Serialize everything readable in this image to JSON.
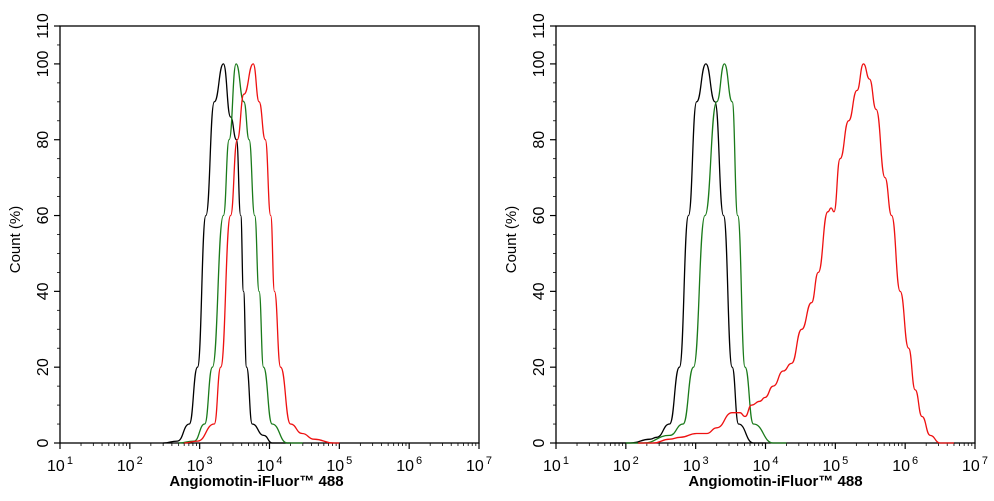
{
  "chart_data": [
    {
      "type": "line",
      "xscale": "log",
      "xlim": [
        10,
        10000000
      ],
      "ylim": [
        0,
        110
      ],
      "xlabel": "Angiomotin-iFluor™ 488",
      "ylabel": "Count  (%)",
      "x_tick_labels": [
        {
          "base": "10",
          "exp": "1"
        },
        {
          "base": "10",
          "exp": "2"
        },
        {
          "base": "10",
          "exp": "3"
        },
        {
          "base": "10",
          "exp": "4"
        },
        {
          "base": "10",
          "exp": "5"
        },
        {
          "base": "10",
          "exp": "6"
        },
        {
          "base": "10",
          "exp": "7"
        }
      ],
      "y_ticks": [
        0,
        20,
        40,
        60,
        80,
        100,
        110
      ],
      "grid": false,
      "series": [
        {
          "color": "#000000",
          "x": [
            300,
            480,
            710,
            930,
            1230,
            1620,
            2190,
            2770,
            3370,
            3870,
            4240,
            4700,
            5650,
            8300,
            10900,
            20000
          ],
          "y": [
            0,
            0.5,
            5,
            20,
            60,
            90,
            100,
            86,
            80,
            60,
            40,
            20,
            5,
            2,
            0,
            0
          ]
        },
        {
          "color": "#1a7a1a",
          "x": [
            500,
            830,
            1180,
            1520,
            2190,
            2640,
            3320,
            4300,
            5100,
            6140,
            7100,
            8200,
            10900,
            18000,
            30000
          ],
          "y": [
            0,
            0.5,
            5,
            20,
            60,
            80,
            100,
            90,
            80,
            60,
            40,
            20,
            5,
            0,
            0
          ]
        },
        {
          "color": "#ee1111",
          "x": [
            600,
            930,
            1620,
            2000,
            2770,
            3460,
            4300,
            5850,
            7100,
            8700,
            10400,
            11800,
            14400,
            20000,
            29400,
            43300,
            83500,
            100000
          ],
          "y": [
            0,
            0.5,
            5,
            20,
            60,
            80,
            92,
            100,
            90,
            80,
            60,
            40,
            20,
            5,
            2.5,
            1,
            0,
            0
          ]
        }
      ]
    },
    {
      "type": "line",
      "xscale": "log",
      "xlim": [
        10,
        10000000
      ],
      "ylim": [
        0,
        110
      ],
      "xlabel": "Angiomotin-iFluor™ 488",
      "ylabel": "Count  (%)",
      "x_tick_labels": [
        {
          "base": "10",
          "exp": "1"
        },
        {
          "base": "10",
          "exp": "2"
        },
        {
          "base": "10",
          "exp": "3"
        },
        {
          "base": "10",
          "exp": "4"
        },
        {
          "base": "10",
          "exp": "5"
        },
        {
          "base": "10",
          "exp": "6"
        },
        {
          "base": "10",
          "exp": "7"
        }
      ],
      "y_ticks": [
        0,
        20,
        40,
        60,
        80,
        100,
        110
      ],
      "grid": false,
      "series": [
        {
          "color": "#000000",
          "x": [
            60,
            115,
            224,
            276,
            424,
            585,
            790,
            1030,
            1400,
            1890,
            2500,
            3330,
            4100,
            6700,
            10000
          ],
          "y": [
            0,
            0,
            1,
            1.5,
            5,
            20,
            60,
            90,
            100,
            90,
            60,
            20,
            5,
            0,
            0
          ]
        },
        {
          "color": "#1a7a1a",
          "x": [
            100,
            178,
            424,
            660,
            930,
            1360,
            2000,
            2580,
            3330,
            4000,
            5100,
            6700,
            12900,
            20000
          ],
          "y": [
            0,
            0,
            2,
            5,
            20,
            60,
            90,
            100,
            90,
            60,
            20,
            5,
            0,
            0
          ]
        },
        {
          "color": "#ee1111",
          "x": [
            150,
            245,
            424,
            600,
            1030,
            1440,
            2000,
            3330,
            4300,
            5100,
            6300,
            8300,
            9800,
            12900,
            18000,
            23600,
            33000,
            45600,
            57000,
            78000,
            87000,
            95700,
            117000,
            155000,
            204000,
            253000,
            308000,
            383000,
            515000,
            640000,
            850000,
            1120000,
            1390000,
            1740000,
            2280000,
            3150000,
            5000000
          ],
          "y": [
            0,
            0,
            1,
            1.5,
            2.5,
            2.5,
            4,
            8,
            8,
            7,
            10,
            11,
            12,
            15,
            19,
            21,
            30,
            37,
            45,
            61,
            62,
            61,
            75,
            85,
            93,
            100,
            96,
            88,
            70,
            60,
            40,
            25,
            14,
            7,
            2,
            0,
            0
          ]
        }
      ]
    }
  ]
}
